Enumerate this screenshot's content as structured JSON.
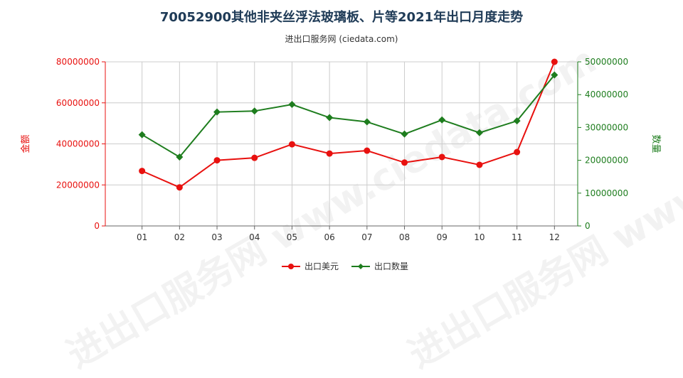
{
  "title": "70052900其他非夹丝浮法玻璃板、片等2021年出口月度走势",
  "subtitle": "进出口服务网 (ciedata.com)",
  "watermark": "进出口服务网 www.ciedata.com",
  "colors": {
    "left_axis": "#e8110f",
    "right_axis": "#1e7d1e",
    "grid": "#cccccc"
  },
  "chart_data": {
    "type": "line",
    "categories": [
      "01",
      "02",
      "03",
      "04",
      "05",
      "06",
      "07",
      "08",
      "09",
      "10",
      "11",
      "12"
    ],
    "left_axis": {
      "label": "金额",
      "ylim": [
        0,
        80000000
      ],
      "ticks": [
        "0",
        "20000000",
        "40000000",
        "60000000",
        "80000000"
      ]
    },
    "right_axis": {
      "label": "数量",
      "ylim": [
        0,
        50000000
      ],
      "ticks": [
        "0",
        "10000000",
        "20000000",
        "30000000",
        "40000000",
        "50000000"
      ]
    },
    "series": [
      {
        "name": "出口美元",
        "axis": "left",
        "color": "#e8110f",
        "values": [
          26800000,
          18800000,
          32000000,
          33200000,
          39800000,
          35300000,
          36700000,
          30900000,
          33600000,
          29800000,
          36000000,
          80000000
        ]
      },
      {
        "name": "出口数量",
        "axis": "right",
        "color": "#1e7d1e",
        "values": [
          27800000,
          21000000,
          34700000,
          35000000,
          37000000,
          33000000,
          31700000,
          28000000,
          32300000,
          28400000,
          32000000,
          46000000
        ]
      }
    ],
    "grid": true,
    "legend_position": "bottom"
  }
}
